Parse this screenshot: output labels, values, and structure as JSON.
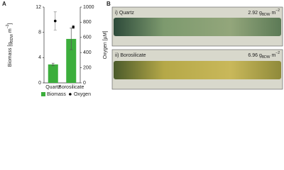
{
  "panels": {
    "a": "A",
    "b": "B"
  },
  "chart_data": {
    "type": "bar",
    "categories": [
      "Quartz",
      "Borosilicate"
    ],
    "ylabel_parts": [
      "Biomass [g",
      "BDW",
      " m",
      "−2",
      "]"
    ],
    "y2label": "Oxygen [µM]",
    "ylim": [
      0,
      12
    ],
    "yticks": [
      0,
      4,
      8,
      12
    ],
    "y2lim": [
      0,
      1000
    ],
    "y2ticks": [
      0,
      200,
      400,
      600,
      800,
      1000
    ],
    "series": [
      {
        "name": "Biomass",
        "type": "bar",
        "color": "#3cae3c",
        "values": [
          2.92,
          6.96
        ],
        "errors": [
          0.2,
          1.7
        ]
      },
      {
        "name": "Oxygen",
        "type": "scatter",
        "axis": "y2",
        "color": "#000000",
        "values": [
          817,
          737
        ],
        "errors": [
          120,
          20
        ]
      }
    ],
    "legend": "bottom"
  },
  "photos": [
    {
      "label": "i) Quartz",
      "biomass_parts": [
        "2.92 g",
        "BDW",
        " m",
        "−2"
      ]
    },
    {
      "label": "ii) Borosilicate",
      "biomass_parts": [
        "6.96 g",
        "BDW",
        " m",
        "−2"
      ]
    }
  ]
}
